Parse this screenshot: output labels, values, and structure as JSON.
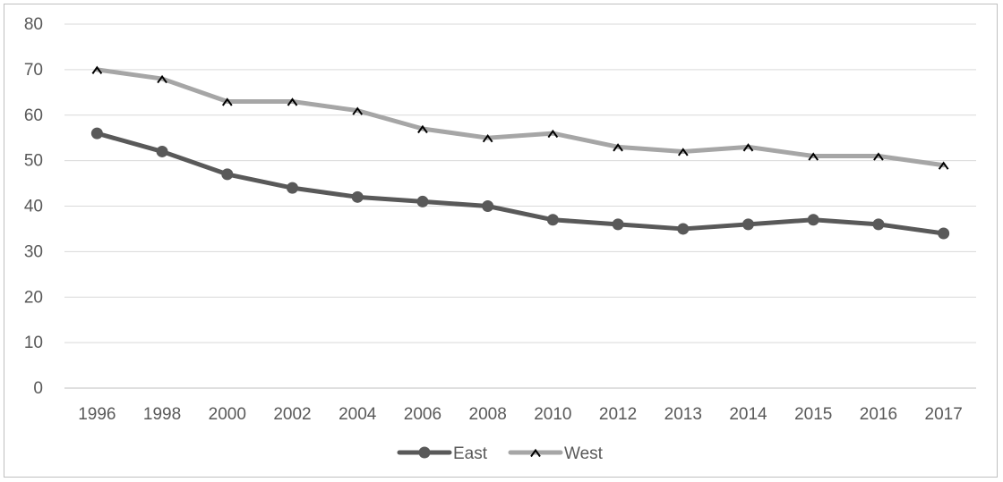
{
  "chart_data": {
    "type": "line",
    "title": "",
    "xlabel": "",
    "ylabel": "",
    "categories": [
      "1996",
      "1998",
      "2000",
      "2002",
      "2004",
      "2006",
      "2008",
      "2010",
      "2012",
      "2013",
      "2014",
      "2015",
      "2016",
      "2017"
    ],
    "ylim": [
      0,
      80
    ],
    "yticks": [
      0,
      10,
      20,
      30,
      40,
      50,
      60,
      70,
      80
    ],
    "grid": true,
    "legend_position": "bottom",
    "series": [
      {
        "name": "East",
        "color": "#595959",
        "marker": "circle",
        "values": [
          56,
          52,
          47,
          44,
          42,
          41,
          40,
          37,
          36,
          35,
          36,
          37,
          36,
          34
        ]
      },
      {
        "name": "West",
        "color": "#a6a6a6",
        "marker": "caret",
        "values": [
          70,
          68,
          63,
          63,
          61,
          57,
          55,
          56,
          53,
          52,
          53,
          51,
          51,
          49
        ]
      }
    ]
  }
}
